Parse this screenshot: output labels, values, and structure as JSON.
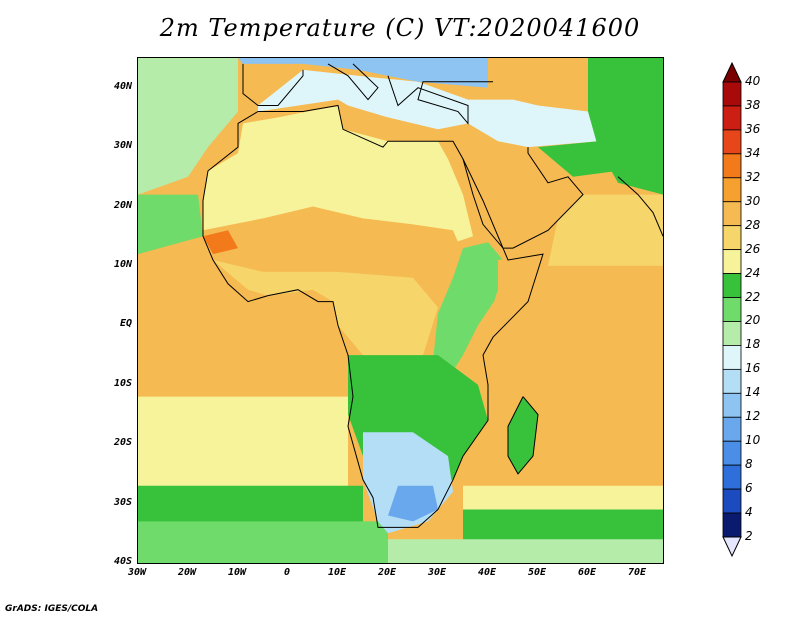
{
  "title": "2m Temperature (C) VT:2020041600",
  "credit": "GrADS: IGES/COLA",
  "map": {
    "projection": "latlon",
    "lat_range": [
      -40,
      45
    ],
    "lon_range": [
      -30,
      75
    ],
    "lat_ticks": [
      {
        "value": 40,
        "label": "40N"
      },
      {
        "value": 30,
        "label": "30N"
      },
      {
        "value": 20,
        "label": "20N"
      },
      {
        "value": 10,
        "label": "10N"
      },
      {
        "value": 0,
        "label": "EQ"
      },
      {
        "value": -10,
        "label": "10S"
      },
      {
        "value": -20,
        "label": "20S"
      },
      {
        "value": -30,
        "label": "30S"
      },
      {
        "value": -40,
        "label": "40S"
      }
    ],
    "lon_ticks": [
      {
        "value": -30,
        "label": "30W"
      },
      {
        "value": -20,
        "label": "20W"
      },
      {
        "value": -10,
        "label": "10W"
      },
      {
        "value": 0,
        "label": "0"
      },
      {
        "value": 10,
        "label": "10E"
      },
      {
        "value": 20,
        "label": "20E"
      },
      {
        "value": 30,
        "label": "30E"
      },
      {
        "value": 40,
        "label": "40E"
      },
      {
        "value": 50,
        "label": "50E"
      },
      {
        "value": 60,
        "label": "60E"
      },
      {
        "value": 70,
        "label": "70E"
      }
    ],
    "background_ocean_temp": 28
  },
  "colorbar": {
    "levels": [
      "2",
      "4",
      "6",
      "8",
      "10",
      "12",
      "14",
      "16",
      "18",
      "20",
      "22",
      "24",
      "26",
      "28",
      "30",
      "32",
      "34",
      "36",
      "38",
      "40"
    ],
    "colors": [
      "#e6e6ff",
      "#0a1a6e",
      "#1c4bbf",
      "#2e6fdb",
      "#4a8ee8",
      "#6aa8ee",
      "#8ec4f2",
      "#b4def6",
      "#def6fa",
      "#b6ecaa",
      "#6edb6a",
      "#38c23c",
      "#f7f39a",
      "#f6d66a",
      "#f6ba52",
      "#f6a030",
      "#f27a1a",
      "#e6461a",
      "#cc1e12",
      "#a80a0a",
      "#7a0000"
    ]
  },
  "regions": [
    {
      "name": "north-atlantic-cool",
      "temp": 18,
      "pts": [
        [
          -30,
          45
        ],
        [
          -10,
          45
        ],
        [
          -10,
          36
        ],
        [
          -16,
          30
        ],
        [
          -20,
          25
        ],
        [
          -30,
          22
        ]
      ]
    },
    {
      "name": "north-atlantic-mid",
      "temp": 20,
      "pts": [
        [
          -30,
          22
        ],
        [
          -18,
          22
        ],
        [
          -17,
          15
        ],
        [
          -30,
          12
        ]
      ]
    },
    {
      "name": "south-atlantic-cool1",
      "temp": 24,
      "pts": [
        [
          -30,
          -12
        ],
        [
          12,
          -12
        ],
        [
          12,
          -40
        ],
        [
          -30,
          -40
        ]
      ]
    },
    {
      "name": "south-atlantic-cool2",
      "temp": 22,
      "pts": [
        [
          -30,
          -27
        ],
        [
          15,
          -27
        ],
        [
          15,
          -40
        ],
        [
          -30,
          -40
        ]
      ]
    },
    {
      "name": "south-atlantic-cool3",
      "temp": 20,
      "pts": [
        [
          -30,
          -33
        ],
        [
          20,
          -33
        ],
        [
          20,
          -40
        ],
        [
          -30,
          -40
        ]
      ]
    },
    {
      "name": "indian-south-cool1",
      "temp": 24,
      "pts": [
        [
          35,
          -27
        ],
        [
          75,
          -27
        ],
        [
          75,
          -40
        ],
        [
          35,
          -40
        ]
      ]
    },
    {
      "name": "indian-south-cool2",
      "temp": 22,
      "pts": [
        [
          35,
          -31
        ],
        [
          75,
          -31
        ],
        [
          75,
          -40
        ],
        [
          35,
          -40
        ]
      ]
    },
    {
      "name": "indian-south-cool3",
      "temp": 18,
      "pts": [
        [
          20,
          -36
        ],
        [
          75,
          -36
        ],
        [
          75,
          -40
        ],
        [
          20,
          -40
        ]
      ]
    },
    {
      "name": "arabian-sea",
      "temp": 26,
      "pts": [
        [
          55,
          22
        ],
        [
          75,
          22
        ],
        [
          75,
          10
        ],
        [
          52,
          10
        ]
      ]
    },
    {
      "name": "mediterranean",
      "temp": 16,
      "pts": [
        [
          -6,
          36
        ],
        [
          10,
          38
        ],
        [
          12,
          37
        ],
        [
          20,
          35
        ],
        [
          30,
          33
        ],
        [
          36,
          34
        ],
        [
          36,
          38
        ],
        [
          26,
          41
        ],
        [
          14,
          42
        ],
        [
          3,
          43
        ],
        [
          -6,
          37
        ]
      ]
    },
    {
      "name": "europe-land",
      "temp": 12,
      "pts": [
        [
          -10,
          45
        ],
        [
          40,
          45
        ],
        [
          40,
          40
        ],
        [
          26,
          41
        ],
        [
          14,
          43
        ],
        [
          3,
          44
        ],
        [
          -9,
          44
        ]
      ]
    },
    {
      "name": "north-africa-desert",
      "temp": 24,
      "pts": [
        [
          -17,
          21
        ],
        [
          -16,
          26
        ],
        [
          -10,
          29
        ],
        [
          -9,
          34
        ],
        [
          -2,
          35
        ],
        [
          10,
          37
        ],
        [
          11,
          33
        ],
        [
          20,
          31
        ],
        [
          30,
          31
        ],
        [
          32,
          28
        ],
        [
          35,
          22
        ],
        [
          37,
          15
        ],
        [
          30,
          13
        ],
        [
          15,
          14
        ],
        [
          5,
          15
        ],
        [
          -5,
          16
        ],
        [
          -17,
          16
        ]
      ]
    },
    {
      "name": "sahel",
      "temp": 28,
      "pts": [
        [
          -17,
          16
        ],
        [
          -5,
          18
        ],
        [
          5,
          20
        ],
        [
          15,
          18
        ],
        [
          25,
          17
        ],
        [
          33,
          16
        ],
        [
          35,
          12
        ],
        [
          30,
          8
        ],
        [
          15,
          8
        ],
        [
          5,
          7
        ],
        [
          -8,
          8
        ],
        [
          -15,
          10
        ],
        [
          -17,
          14
        ]
      ]
    },
    {
      "name": "senegal-hot",
      "temp": 32,
      "pts": [
        [
          -17,
          15
        ],
        [
          -12,
          16
        ],
        [
          -10,
          13
        ],
        [
          -15,
          12
        ]
      ]
    },
    {
      "name": "west-africa-coast",
      "temp": 26,
      "pts": [
        [
          -15,
          11
        ],
        [
          -8,
          6
        ],
        [
          -4,
          5
        ],
        [
          5,
          6
        ],
        [
          9,
          4
        ],
        [
          10,
          0
        ],
        [
          15,
          -5
        ],
        [
          27,
          -5
        ],
        [
          30,
          3
        ],
        [
          25,
          8
        ],
        [
          10,
          9
        ],
        [
          -5,
          9
        ]
      ]
    },
    {
      "name": "east-highlands",
      "temp": 20,
      "pts": [
        [
          35,
          13
        ],
        [
          40,
          14
        ],
        [
          43,
          11
        ],
        [
          42,
          5
        ],
        [
          38,
          0
        ],
        [
          35,
          -5
        ],
        [
          32,
          -9
        ],
        [
          29,
          -6
        ],
        [
          30,
          2
        ],
        [
          33,
          8
        ]
      ]
    },
    {
      "name": "horn",
      "temp": 28,
      "pts": [
        [
          42,
          11
        ],
        [
          51,
          12
        ],
        [
          48,
          4
        ],
        [
          41,
          -2
        ],
        [
          40,
          1
        ],
        [
          42,
          6
        ]
      ]
    },
    {
      "name": "central-south",
      "temp": 22,
      "pts": [
        [
          12,
          -5
        ],
        [
          30,
          -5
        ],
        [
          38,
          -10
        ],
        [
          40,
          -16
        ],
        [
          35,
          -22
        ],
        [
          33,
          -26
        ],
        [
          25,
          -26
        ],
        [
          15,
          -22
        ],
        [
          12,
          -15
        ]
      ]
    },
    {
      "name": "south-africa-cool",
      "temp": 14,
      "pts": [
        [
          15,
          -18
        ],
        [
          25,
          -18
        ],
        [
          32,
          -22
        ],
        [
          33,
          -28
        ],
        [
          28,
          -33
        ],
        [
          20,
          -35
        ],
        [
          18,
          -33
        ],
        [
          15,
          -26
        ]
      ]
    },
    {
      "name": "south-africa-cold",
      "temp": 10,
      "pts": [
        [
          22,
          -27
        ],
        [
          29,
          -27
        ],
        [
          30,
          -31
        ],
        [
          25,
          -33
        ],
        [
          20,
          -32
        ]
      ]
    },
    {
      "name": "arabia",
      "temp": 28,
      "pts": [
        [
          35,
          30
        ],
        [
          42,
          31
        ],
        [
          48,
          29
        ],
        [
          56,
          25
        ],
        [
          59,
          22
        ],
        [
          52,
          16
        ],
        [
          45,
          13
        ],
        [
          42,
          15
        ],
        [
          39,
          21
        ],
        [
          36,
          27
        ]
      ]
    },
    {
      "name": "middle-east-cool",
      "temp": 16,
      "pts": [
        [
          36,
          38
        ],
        [
          45,
          38
        ],
        [
          50,
          37
        ],
        [
          60,
          36
        ],
        [
          62,
          31
        ],
        [
          48,
          30
        ],
        [
          42,
          31
        ],
        [
          36,
          34
        ]
      ]
    },
    {
      "name": "iran-hot",
      "temp": 22,
      "pts": [
        [
          50,
          30
        ],
        [
          62,
          31
        ],
        [
          66,
          26
        ],
        [
          57,
          25
        ]
      ]
    },
    {
      "name": "south-asia",
      "temp": 22,
      "pts": [
        [
          60,
          45
        ],
        [
          75,
          45
        ],
        [
          75,
          22
        ],
        [
          66,
          24
        ],
        [
          62,
          30
        ],
        [
          60,
          36
        ]
      ]
    },
    {
      "name": "madagascar",
      "temp": 22,
      "pts": [
        [
          47,
          -12
        ],
        [
          50,
          -15
        ],
        [
          49,
          -22
        ],
        [
          46,
          -25
        ],
        [
          44,
          -22
        ],
        [
          44,
          -17
        ]
      ]
    }
  ],
  "coastlines": [
    {
      "name": "africa-coast",
      "pts": [
        [
          -6,
          36
        ],
        [
          -10,
          34
        ],
        [
          -10,
          30
        ],
        [
          -16,
          26
        ],
        [
          -17,
          21
        ],
        [
          -17,
          15
        ],
        [
          -15,
          11
        ],
        [
          -12,
          7
        ],
        [
          -8,
          4
        ],
        [
          -4,
          5
        ],
        [
          2,
          6
        ],
        [
          6,
          4
        ],
        [
          9,
          4
        ],
        [
          10,
          0
        ],
        [
          12,
          -5
        ],
        [
          13,
          -12
        ],
        [
          12,
          -17
        ],
        [
          15,
          -26
        ],
        [
          17,
          -29
        ],
        [
          18,
          -34
        ],
        [
          22,
          -34
        ],
        [
          26,
          -34
        ],
        [
          30,
          -31
        ],
        [
          33,
          -26
        ],
        [
          35,
          -22
        ],
        [
          40,
          -16
        ],
        [
          40,
          -10
        ],
        [
          39,
          -5
        ],
        [
          41,
          -2
        ],
        [
          48,
          4
        ],
        [
          51,
          12
        ],
        [
          44,
          11
        ],
        [
          43,
          13
        ],
        [
          39,
          17
        ],
        [
          37,
          22
        ],
        [
          35,
          28
        ],
        [
          33,
          31
        ],
        [
          30,
          31
        ],
        [
          20,
          31
        ],
        [
          19,
          30
        ],
        [
          11,
          33
        ],
        [
          10,
          37
        ],
        [
          3,
          36
        ],
        [
          -6,
          36
        ]
      ]
    },
    {
      "name": "madagascar-coast",
      "pts": [
        [
          47,
          -12
        ],
        [
          50,
          -15
        ],
        [
          49,
          -22
        ],
        [
          46,
          -25
        ],
        [
          44,
          -22
        ],
        [
          44,
          -17
        ],
        [
          47,
          -12
        ]
      ]
    },
    {
      "name": "arabia-coast",
      "pts": [
        [
          35,
          28
        ],
        [
          39,
          21
        ],
        [
          43,
          13
        ],
        [
          45,
          13
        ],
        [
          52,
          16
        ],
        [
          59,
          22
        ],
        [
          56,
          25
        ],
        [
          52,
          24
        ],
        [
          48,
          29
        ],
        [
          48,
          30
        ]
      ]
    },
    {
      "name": "iberia-coast",
      "pts": [
        [
          -9,
          44
        ],
        [
          -9,
          39
        ],
        [
          -6,
          37
        ],
        [
          -2,
          37
        ],
        [
          3,
          42
        ],
        [
          3,
          43
        ]
      ]
    },
    {
      "name": "italy-coast",
      "pts": [
        [
          8,
          44
        ],
        [
          12,
          42
        ],
        [
          16,
          38
        ],
        [
          18,
          40
        ],
        [
          13,
          44
        ]
      ]
    },
    {
      "name": "greece-turkey-coast",
      "pts": [
        [
          20,
          42
        ],
        [
          22,
          37
        ],
        [
          26,
          40
        ],
        [
          36,
          37
        ],
        [
          36,
          34
        ],
        [
          34,
          36
        ],
        [
          26,
          38
        ],
        [
          27,
          41
        ],
        [
          30,
          41
        ],
        [
          36,
          41
        ],
        [
          41,
          41
        ]
      ]
    },
    {
      "name": "india-coast",
      "pts": [
        [
          66,
          25
        ],
        [
          70,
          22
        ],
        [
          73,
          19
        ],
        [
          75,
          15
        ]
      ]
    }
  ]
}
